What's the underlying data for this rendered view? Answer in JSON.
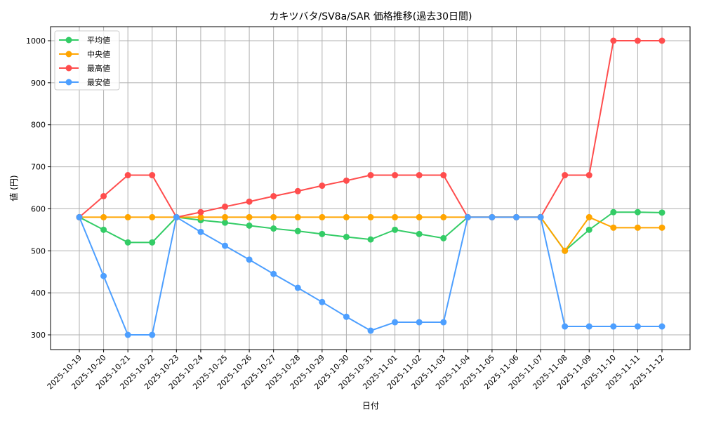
{
  "chart_data": {
    "type": "line",
    "title": "カキツバタ/SV8a/SAR 価格推移(過去30日間)",
    "xlabel": "日付",
    "ylabel": "値 (円)",
    "ylim": [
      270,
      1030
    ],
    "yticks": [
      300,
      400,
      500,
      600,
      700,
      800,
      900,
      1000
    ],
    "grid": true,
    "legend_position": "upper left",
    "categories": [
      "2025-10-19",
      "2025-10-20",
      "2025-10-21",
      "2025-10-22",
      "2025-10-23",
      "2025-10-24",
      "2025-10-25",
      "2025-10-26",
      "2025-10-27",
      "2025-10-28",
      "2025-10-29",
      "2025-10-30",
      "2025-10-31",
      "2025-11-01",
      "2025-11-02",
      "2025-11-03",
      "2025-11-04",
      "2025-11-05",
      "2025-11-06",
      "2025-11-07",
      "2025-11-08",
      "2025-11-09",
      "2025-11-10",
      "2025-11-11",
      "2025-11-12"
    ],
    "series": [
      {
        "name": "平均値",
        "color": "#33cc66",
        "values": [
          580,
          550,
          520,
          520,
          580,
          573,
          567,
          560,
          553,
          547,
          540,
          533,
          527,
          550,
          540,
          530,
          580,
          580,
          580,
          580,
          500,
          550,
          592,
          592,
          591
        ]
      },
      {
        "name": "中央値",
        "color": "#ffa500",
        "values": [
          580,
          580,
          580,
          580,
          580,
          580,
          580,
          580,
          580,
          580,
          580,
          580,
          580,
          580,
          580,
          580,
          580,
          580,
          580,
          580,
          500,
          580,
          555,
          555,
          555
        ]
      },
      {
        "name": "最高値",
        "color": "#ff4d4d",
        "values": [
          580,
          630,
          680,
          680,
          580,
          592,
          605,
          617,
          630,
          642,
          655,
          667,
          680,
          680,
          680,
          680,
          580,
          580,
          580,
          580,
          680,
          680,
          1000,
          1000,
          1000
        ]
      },
      {
        "name": "最安値",
        "color": "#4d9fff",
        "values": [
          580,
          440,
          300,
          300,
          580,
          545,
          512,
          479,
          445,
          412,
          378,
          343,
          310,
          330,
          330,
          330,
          580,
          580,
          580,
          580,
          320,
          320,
          320,
          320,
          320
        ]
      }
    ]
  }
}
